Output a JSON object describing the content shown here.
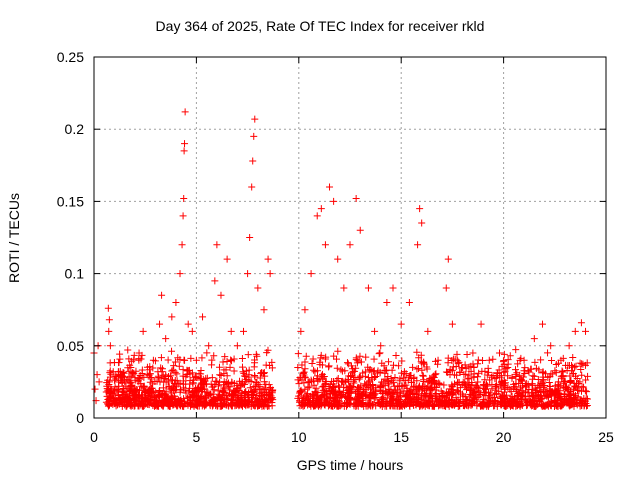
{
  "chart_data": {
    "type": "scatter",
    "title": "Day 364 of 2025, Rate Of TEC Index for receiver rkld",
    "xlabel": "GPS time / hours",
    "ylabel": "ROTI / TECUs",
    "xlim": [
      0,
      25
    ],
    "ylim": [
      0,
      0.25
    ],
    "xticks": [
      0,
      5,
      10,
      15,
      20,
      25
    ],
    "yticks": [
      0,
      0.05,
      0.1,
      0.15,
      0.2,
      0.25
    ],
    "ytick_labels": [
      "0",
      "0.05",
      "0.1",
      "0.15",
      "0.2",
      "0.25"
    ],
    "grid": true,
    "marker": "+",
    "marker_color": "#ff0000",
    "data_gap_hours": [
      8.75,
      9.95
    ],
    "series": [
      {
        "points": [
          [
            0.0,
            0.045
          ],
          [
            0.05,
            0.02
          ],
          [
            0.1,
            0.012
          ],
          [
            0.15,
            0.03
          ],
          [
            0.2,
            0.05
          ],
          [
            0.25,
            0.025
          ],
          [
            0.6,
            0.018
          ],
          [
            0.7,
            0.076
          ],
          [
            0.72,
            0.06
          ],
          [
            0.75,
            0.068
          ],
          [
            0.8,
            0.05
          ],
          [
            0.85,
            0.02
          ],
          [
            1.2,
            0.03
          ],
          [
            1.5,
            0.025
          ],
          [
            1.8,
            0.035
          ],
          [
            2.0,
            0.028
          ],
          [
            2.2,
            0.045
          ],
          [
            2.4,
            0.06
          ],
          [
            2.6,
            0.03
          ],
          [
            2.9,
            0.04
          ],
          [
            3.2,
            0.065
          ],
          [
            3.3,
            0.085
          ],
          [
            3.5,
            0.055
          ],
          [
            3.8,
            0.07
          ],
          [
            4.0,
            0.08
          ],
          [
            4.2,
            0.1
          ],
          [
            4.3,
            0.12
          ],
          [
            4.35,
            0.14
          ],
          [
            4.38,
            0.152
          ],
          [
            4.4,
            0.185
          ],
          [
            4.42,
            0.19
          ],
          [
            4.45,
            0.212
          ],
          [
            4.6,
            0.065
          ],
          [
            4.8,
            0.06
          ],
          [
            5.0,
            0.04
          ],
          [
            5.3,
            0.07
          ],
          [
            5.6,
            0.05
          ],
          [
            5.9,
            0.095
          ],
          [
            6.0,
            0.12
          ],
          [
            6.2,
            0.085
          ],
          [
            6.5,
            0.11
          ],
          [
            6.7,
            0.06
          ],
          [
            7.0,
            0.05
          ],
          [
            7.3,
            0.06
          ],
          [
            7.5,
            0.1
          ],
          [
            7.6,
            0.125
          ],
          [
            7.7,
            0.16
          ],
          [
            7.75,
            0.178
          ],
          [
            7.8,
            0.195
          ],
          [
            7.85,
            0.207
          ],
          [
            8.0,
            0.09
          ],
          [
            8.3,
            0.075
          ],
          [
            8.5,
            0.11
          ],
          [
            8.6,
            0.1
          ],
          [
            9.95,
            0.035
          ],
          [
            10.1,
            0.06
          ],
          [
            10.3,
            0.075
          ],
          [
            10.6,
            0.1
          ],
          [
            10.9,
            0.14
          ],
          [
            11.1,
            0.145
          ],
          [
            11.3,
            0.12
          ],
          [
            11.5,
            0.16
          ],
          [
            11.7,
            0.15
          ],
          [
            11.9,
            0.11
          ],
          [
            12.2,
            0.09
          ],
          [
            12.5,
            0.12
          ],
          [
            12.8,
            0.152
          ],
          [
            13.0,
            0.13
          ],
          [
            13.4,
            0.09
          ],
          [
            13.7,
            0.06
          ],
          [
            14.0,
            0.05
          ],
          [
            14.3,
            0.08
          ],
          [
            14.6,
            0.09
          ],
          [
            15.0,
            0.065
          ],
          [
            15.4,
            0.08
          ],
          [
            15.8,
            0.12
          ],
          [
            15.9,
            0.145
          ],
          [
            16.0,
            0.135
          ],
          [
            16.3,
            0.06
          ],
          [
            16.8,
            0.04
          ],
          [
            17.2,
            0.09
          ],
          [
            17.3,
            0.11
          ],
          [
            17.5,
            0.065
          ],
          [
            18.0,
            0.035
          ],
          [
            18.5,
            0.045
          ],
          [
            18.9,
            0.065
          ],
          [
            19.3,
            0.04
          ],
          [
            19.8,
            0.045
          ],
          [
            20.2,
            0.035
          ],
          [
            20.6,
            0.03
          ],
          [
            21.0,
            0.04
          ],
          [
            21.5,
            0.055
          ],
          [
            21.9,
            0.065
          ],
          [
            22.3,
            0.05
          ],
          [
            22.8,
            0.04
          ],
          [
            23.2,
            0.05
          ],
          [
            23.5,
            0.06
          ],
          [
            23.8,
            0.066
          ],
          [
            24.0,
            0.06
          ]
        ]
      }
    ]
  }
}
